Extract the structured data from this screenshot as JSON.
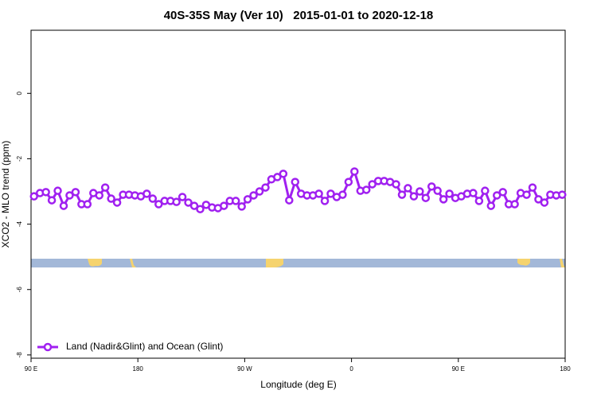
{
  "chart_data": {
    "type": "line",
    "title": "40S-35S May (Ver 10)   2015-01-01 to 2020-12-18",
    "x_label": "Longitude (deg E)",
    "y_label": "XCO2 - MLO trend (ppm)",
    "xlim": [
      90,
      540
    ],
    "ylim": [
      -8.1,
      1.93
    ],
    "xticks": [
      {
        "value": 90,
        "label": "90 E"
      },
      {
        "value": 180,
        "label": "180"
      },
      {
        "value": 270,
        "label": "90 W"
      },
      {
        "value": 360,
        "label": "0"
      },
      {
        "value": 450,
        "label": "90 E"
      },
      {
        "value": 540,
        "label": "180"
      }
    ],
    "yticks": [
      0,
      -2,
      -4,
      -6,
      -8
    ],
    "legend": "bottom-left",
    "x": [
      92.5,
      97.5,
      102.5,
      107.5,
      112.5,
      117.5,
      122.5,
      127.5,
      132.5,
      137.5,
      142.5,
      147.5,
      152.5,
      157.5,
      162.5,
      167.5,
      172.5,
      177.5,
      182.5,
      187.5,
      192.5,
      197.5,
      202.5,
      207.5,
      212.5,
      217.5,
      222.5,
      227.5,
      232.5,
      237.5,
      242.5,
      247.5,
      252.5,
      257.5,
      262.5,
      267.5,
      272.5,
      277.5,
      282.5,
      287.5,
      292.5,
      297.5,
      302.5,
      307.5,
      312.5,
      317.5,
      322.5,
      327.5,
      332.5,
      337.5,
      342.5,
      347.5,
      352.5,
      357.5,
      362.5,
      367.5,
      372.5,
      377.5,
      382.5,
      387.5,
      392.5,
      397.5,
      402.5,
      407.5,
      412.5,
      417.5,
      422.5,
      427.5,
      432.5,
      437.5,
      442.5,
      447.5,
      452.5,
      457.5,
      462.5,
      467.5,
      472.5,
      477.5,
      482.5,
      487.5,
      492.5,
      497.5,
      502.5,
      507.5,
      512.5,
      517.5,
      522.5,
      527.5,
      532.5,
      537.5
    ],
    "series": [
      {
        "name": "Land (Nadir&Glint) and Ocean (Glint)",
        "color": "#a020f0",
        "values": [
          -3.15,
          -3.05,
          -3.02,
          -3.27,
          -2.98,
          -3.44,
          -3.12,
          -3.02,
          -3.39,
          -3.39,
          -3.05,
          -3.12,
          -2.88,
          -3.22,
          -3.34,
          -3.1,
          -3.1,
          -3.12,
          -3.15,
          -3.07,
          -3.22,
          -3.39,
          -3.29,
          -3.29,
          -3.32,
          -3.17,
          -3.34,
          -3.44,
          -3.54,
          -3.41,
          -3.49,
          -3.51,
          -3.44,
          -3.29,
          -3.29,
          -3.46,
          -3.24,
          -3.12,
          -3.0,
          -2.88,
          -2.63,
          -2.56,
          -2.46,
          -3.27,
          -2.71,
          -3.07,
          -3.12,
          -3.12,
          -3.07,
          -3.29,
          -3.07,
          -3.17,
          -3.1,
          -2.71,
          -2.39,
          -2.98,
          -2.95,
          -2.78,
          -2.68,
          -2.68,
          -2.71,
          -2.78,
          -3.1,
          -2.9,
          -3.15,
          -3.0,
          -3.2,
          -2.85,
          -2.98,
          -3.24,
          -3.07,
          -3.2,
          -3.15,
          -3.07,
          -3.05,
          -3.29,
          -2.98,
          -3.44,
          -3.12,
          -3.02,
          -3.39,
          -3.39,
          -3.05,
          -3.1,
          -2.88,
          -3.24,
          -3.34,
          -3.1,
          -3.12,
          -3.1
        ]
      }
    ]
  }
}
